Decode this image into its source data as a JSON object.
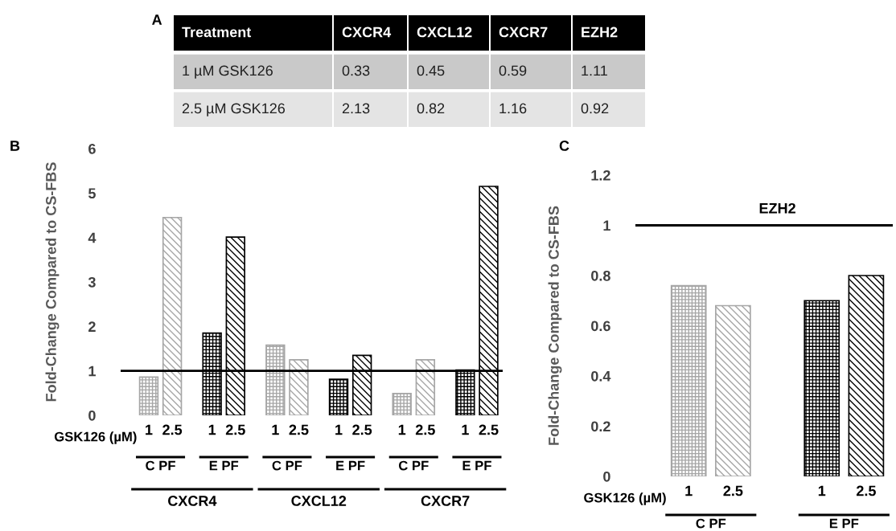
{
  "chart_data": [
    {
      "type": "other",
      "title": "A",
      "categories": [
        "Treatment",
        "CXCR4",
        "CXCL12",
        "CXCR7",
        "EZH2"
      ],
      "annotations": [
        "1 µM GSK126",
        "0.33",
        "0.45",
        "0.59",
        "1.11",
        "2.5 µM GSK126",
        "2.13",
        "0.82",
        "1.16",
        "0.92"
      ]
    },
    {
      "type": "bar",
      "title": "B",
      "ylabel": "Fold-Change Compared to CS-FBS",
      "xlabel": "GSK126 (µM)",
      "categories": [
        "1",
        "2.5",
        "1",
        "2.5",
        "1",
        "2.5",
        "1",
        "2.5",
        "1",
        "2.5",
        "1",
        "2.5"
      ],
      "values": [
        0.86,
        4.45,
        1.85,
        4.01,
        1.58,
        1.25,
        0.81,
        1.35,
        0.49,
        1.25,
        1.02,
        5.15
      ],
      "colors": [
        "#a6a6a6",
        "#a6a6a6",
        "#000000",
        "#000000",
        "#a6a6a6",
        "#a6a6a6",
        "#000000",
        "#000000",
        "#a6a6a6",
        "#a6a6a6",
        "#000000",
        "#000000"
      ],
      "ylim": [
        0,
        6
      ],
      "yticks": [
        0,
        1,
        2,
        3,
        4,
        5,
        6
      ],
      "ref_lines": [
        {
          "axis": "y",
          "value": 1,
          "color": "#000000"
        }
      ],
      "annotations": [
        "C PF",
        "E PF",
        "C PF",
        "E PF",
        "C PF",
        "E PF",
        "CXCR4",
        "CXCL12",
        "CXCR7"
      ],
      "grid": false
    },
    {
      "type": "bar",
      "title": "C",
      "ylabel": "Fold-Change Compared to CS-FBS",
      "xlabel": "GSK126 (µM)",
      "categories": [
        "1",
        "2.5",
        "1",
        "2.5"
      ],
      "values": [
        0.76,
        0.68,
        0.7,
        0.8
      ],
      "colors": [
        "#a6a6a6",
        "#a6a6a6",
        "#000000",
        "#000000"
      ],
      "ylim": [
        0,
        1.2
      ],
      "yticks": [
        0,
        0.2,
        0.4,
        0.6,
        0.8,
        1,
        1.2
      ],
      "ref_lines": [
        {
          "axis": "y",
          "value": 1,
          "label": "EZH2",
          "color": "#000000"
        }
      ],
      "annotations": [
        "C PF",
        "E PF"
      ],
      "grid": false
    }
  ]
}
